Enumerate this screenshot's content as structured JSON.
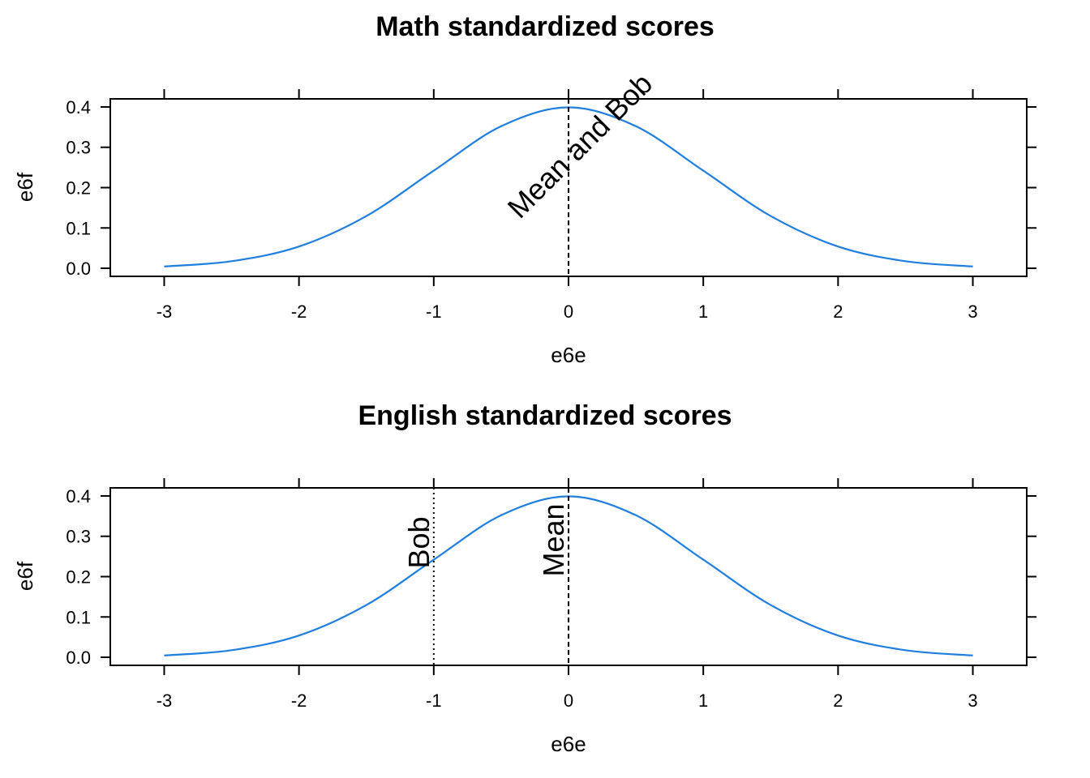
{
  "chart_data": [
    {
      "type": "line",
      "title": "Math standardized scores",
      "xlabel": "e6e",
      "ylabel": "e6f",
      "xlim": [
        -3.4,
        3.4
      ],
      "ylim": [
        -0.02,
        0.42
      ],
      "x_ticks": [
        "-3",
        "-2",
        "-1",
        "0",
        "1",
        "2",
        "3"
      ],
      "y_ticks": [
        "0.0",
        "0.1",
        "0.2",
        "0.3",
        "0.4"
      ],
      "line_color": "#1f7fe0",
      "series": [
        {
          "x": [
            -3,
            -2.5,
            -2,
            -1.5,
            -1,
            -0.5,
            0,
            0.5,
            1,
            1.5,
            2,
            2.5,
            3
          ],
          "values": [
            0.0044,
            0.0175,
            0.054,
            0.1295,
            0.242,
            0.3521,
            0.3989,
            0.3521,
            0.242,
            0.1295,
            0.054,
            0.0175,
            0.0044
          ]
        }
      ],
      "vlines": [
        {
          "x": 0,
          "style": "dashed",
          "label": "Mean and Bob",
          "label_rotation": -45,
          "label_y": 0.12
        }
      ]
    },
    {
      "type": "line",
      "title": "English standardized scores",
      "xlabel": "e6e",
      "ylabel": "e6f",
      "xlim": [
        -3.4,
        3.4
      ],
      "ylim": [
        -0.02,
        0.42
      ],
      "x_ticks": [
        "-3",
        "-2",
        "-1",
        "0",
        "1",
        "2",
        "3"
      ],
      "y_ticks": [
        "0.0",
        "0.1",
        "0.2",
        "0.3",
        "0.4"
      ],
      "line_color": "#1f7fe0",
      "series": [
        {
          "x": [
            -3,
            -2.5,
            -2,
            -1.5,
            -1,
            -0.5,
            0,
            0.5,
            1,
            1.5,
            2,
            2.5,
            3
          ],
          "values": [
            0.0044,
            0.0175,
            0.054,
            0.1295,
            0.242,
            0.3521,
            0.3989,
            0.3521,
            0.242,
            0.1295,
            0.054,
            0.0175,
            0.0044
          ]
        }
      ],
      "vlines": [
        {
          "x": 0,
          "style": "dashed",
          "label": "Mean",
          "label_rotation": -90,
          "label_y": 0.2
        },
        {
          "x": -1,
          "style": "dotted",
          "label": "Bob",
          "label_rotation": -90,
          "label_y": 0.22
        }
      ]
    }
  ]
}
